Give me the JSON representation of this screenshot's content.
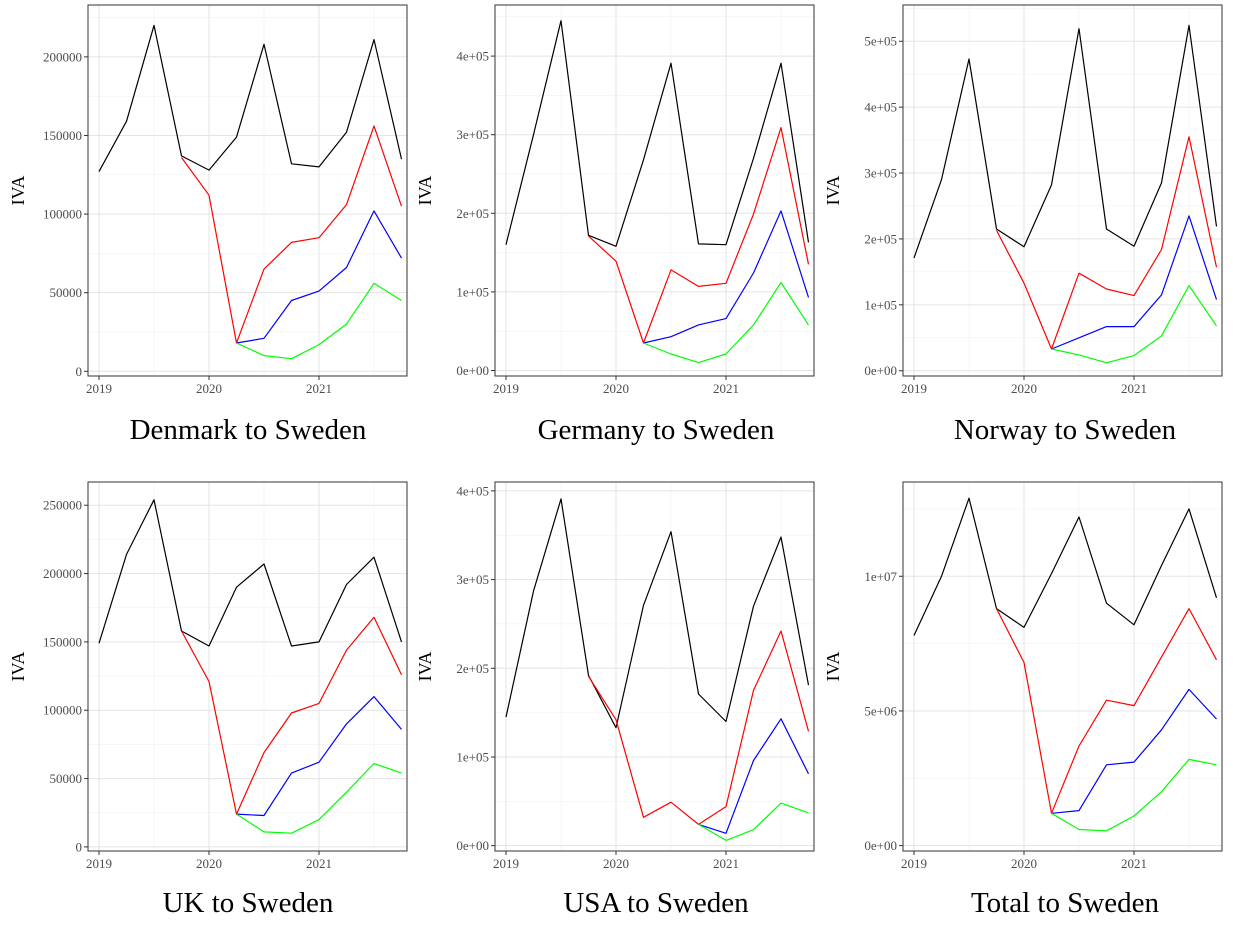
{
  "figure": {
    "series_colors": {
      "actual": "#000000",
      "red_scenario": "#ff0000",
      "blue_scenario": "#0000ff",
      "green_scenario": "#00ff00"
    }
  },
  "chart_data": [
    {
      "type": "line",
      "title": "Denmark to Sweden",
      "ylabel": "IVA",
      "xlabel": "",
      "x": [
        2019,
        2019.25,
        2019.5,
        2019.75,
        2020,
        2020.25,
        2020.5,
        2020.75,
        2021,
        2021.25,
        2021.5,
        2021.75
      ],
      "x_ticks": [
        2019,
        2020,
        2021
      ],
      "x_tick_labels": [
        "2019",
        "2020",
        "2021"
      ],
      "xlim": [
        2018.9,
        2021.8
      ],
      "ylim": [
        -3000,
        233000
      ],
      "y_ticks": [
        0,
        50000,
        100000,
        150000,
        200000
      ],
      "y_tick_labels": [
        "0",
        "50000",
        "100000",
        "150000",
        "200000"
      ],
      "grid": true,
      "series": [
        {
          "color": "#000000",
          "values": [
            127000,
            159000,
            220000,
            137000,
            128000,
            149000,
            208000,
            132000,
            130000,
            152000,
            211000,
            135000
          ]
        },
        {
          "color": "#ff0000",
          "values": [
            null,
            null,
            null,
            136000,
            112000,
            18000,
            65000,
            82000,
            85000,
            106000,
            156000,
            105000
          ]
        },
        {
          "color": "#0000ff",
          "values": [
            null,
            null,
            null,
            null,
            null,
            18000,
            21000,
            45000,
            51000,
            66000,
            102000,
            72000
          ]
        },
        {
          "color": "#00ff00",
          "values": [
            null,
            null,
            null,
            null,
            null,
            18000,
            10000,
            8000,
            17000,
            30000,
            56000,
            45000
          ]
        }
      ]
    },
    {
      "type": "line",
      "title": "Germany to Sweden",
      "ylabel": "IVA",
      "xlabel": "",
      "x": [
        2019,
        2019.25,
        2019.5,
        2019.75,
        2020,
        2020.25,
        2020.5,
        2020.75,
        2021,
        2021.25,
        2021.5,
        2021.75
      ],
      "x_ticks": [
        2019,
        2020,
        2021
      ],
      "x_tick_labels": [
        "2019",
        "2020",
        "2021"
      ],
      "xlim": [
        2018.9,
        2021.8
      ],
      "ylim": [
        -7000,
        465000
      ],
      "y_ticks": [
        0,
        100000,
        200000,
        300000,
        400000
      ],
      "y_tick_labels": [
        "0e+00",
        "1e+05",
        "2e+05",
        "3e+05",
        "4e+05"
      ],
      "grid": true,
      "series": [
        {
          "color": "#000000",
          "values": [
            160000,
            300000,
            445000,
            172000,
            158000,
            268000,
            391000,
            161000,
            160000,
            270000,
            391000,
            163000
          ]
        },
        {
          "color": "#ff0000",
          "values": [
            null,
            null,
            null,
            171000,
            139000,
            35000,
            128000,
            107000,
            111000,
            199000,
            309000,
            135000
          ]
        },
        {
          "color": "#0000ff",
          "values": [
            null,
            null,
            null,
            null,
            null,
            35000,
            43000,
            58000,
            66000,
            124000,
            203000,
            93000
          ]
        },
        {
          "color": "#00ff00",
          "values": [
            null,
            null,
            null,
            null,
            null,
            35000,
            21000,
            10000,
            21000,
            58000,
            112000,
            58000
          ]
        }
      ]
    },
    {
      "type": "line",
      "title": "Norway to Sweden",
      "ylabel": "IVA",
      "xlabel": "",
      "x": [
        2019,
        2019.25,
        2019.5,
        2019.75,
        2020,
        2020.25,
        2020.5,
        2020.75,
        2021,
        2021.25,
        2021.5,
        2021.75
      ],
      "x_ticks": [
        2019,
        2020,
        2021
      ],
      "x_tick_labels": [
        "2019",
        "2020",
        "2021"
      ],
      "xlim": [
        2018.9,
        2021.8
      ],
      "ylim": [
        -8000,
        555000
      ],
      "y_ticks": [
        0,
        100000,
        200000,
        300000,
        400000,
        500000
      ],
      "y_tick_labels": [
        "0e+00",
        "1e+05",
        "2e+05",
        "3e+05",
        "4e+05",
        "5e+05"
      ],
      "grid": true,
      "series": [
        {
          "color": "#000000",
          "values": [
            171000,
            290000,
            473000,
            215000,
            188000,
            282000,
            519000,
            215000,
            189000,
            285000,
            524000,
            219000
          ]
        },
        {
          "color": "#ff0000",
          "values": [
            null,
            null,
            null,
            213000,
            133000,
            33000,
            148000,
            124000,
            114000,
            184000,
            355000,
            157000
          ]
        },
        {
          "color": "#0000ff",
          "values": [
            null,
            null,
            null,
            null,
            null,
            33000,
            50000,
            67000,
            67000,
            115000,
            235000,
            108000
          ]
        },
        {
          "color": "#00ff00",
          "values": [
            null,
            null,
            null,
            null,
            null,
            33000,
            24000,
            12000,
            23000,
            53000,
            129000,
            68000
          ]
        }
      ]
    },
    {
      "type": "line",
      "title": "UK to Sweden",
      "ylabel": "IVA",
      "xlabel": "",
      "x": [
        2019,
        2019.25,
        2019.5,
        2019.75,
        2020,
        2020.25,
        2020.5,
        2020.75,
        2021,
        2021.25,
        2021.5,
        2021.75
      ],
      "x_ticks": [
        2019,
        2020,
        2021
      ],
      "x_tick_labels": [
        "2019",
        "2020",
        "2021"
      ],
      "xlim": [
        2018.9,
        2021.8
      ],
      "ylim": [
        -3000,
        267000
      ],
      "y_ticks": [
        0,
        50000,
        100000,
        150000,
        200000,
        250000
      ],
      "y_tick_labels": [
        "0",
        "50000",
        "100000",
        "150000",
        "200000",
        "250000"
      ],
      "grid": true,
      "series": [
        {
          "color": "#000000",
          "values": [
            149000,
            214000,
            254000,
            158000,
            147000,
            190000,
            207000,
            147000,
            150000,
            192000,
            212000,
            150000
          ]
        },
        {
          "color": "#ff0000",
          "values": [
            null,
            null,
            null,
            158000,
            121000,
            24000,
            69000,
            98000,
            105000,
            144000,
            168000,
            126000
          ]
        },
        {
          "color": "#0000ff",
          "values": [
            null,
            null,
            null,
            null,
            null,
            24000,
            23000,
            54000,
            62000,
            90000,
            110000,
            86000
          ]
        },
        {
          "color": "#00ff00",
          "values": [
            null,
            null,
            null,
            null,
            null,
            24000,
            11000,
            10000,
            20000,
            40000,
            61000,
            54000
          ]
        }
      ]
    },
    {
      "type": "line",
      "title": "USA to Sweden",
      "ylabel": "IVA",
      "xlabel": "",
      "x": [
        2019,
        2019.25,
        2019.5,
        2019.75,
        2020,
        2020.25,
        2020.5,
        2020.75,
        2021,
        2021.25,
        2021.5,
        2021.75
      ],
      "x_ticks": [
        2019,
        2020,
        2021
      ],
      "x_tick_labels": [
        "2019",
        "2020",
        "2021"
      ],
      "xlim": [
        2018.9,
        2021.8
      ],
      "ylim": [
        -6000,
        410000
      ],
      "y_ticks": [
        0,
        100000,
        200000,
        300000,
        400000
      ],
      "y_tick_labels": [
        "0e+00",
        "1e+05",
        "2e+05",
        "3e+05",
        "4e+05"
      ],
      "grid": true,
      "series": [
        {
          "color": "#000000",
          "values": [
            145000,
            287000,
            391000,
            192000,
            133000,
            271000,
            354000,
            171000,
            140000,
            270000,
            348000,
            181000
          ]
        },
        {
          "color": "#ff0000",
          "values": [
            null,
            null,
            null,
            191000,
            142000,
            32000,
            49000,
            24000,
            44000,
            175000,
            242000,
            129000
          ]
        },
        {
          "color": "#0000ff",
          "values": [
            null,
            null,
            null,
            null,
            null,
            null,
            null,
            24000,
            14000,
            96000,
            143000,
            81000
          ]
        },
        {
          "color": "#00ff00",
          "values": [
            null,
            null,
            null,
            null,
            null,
            null,
            null,
            24000,
            6000,
            18000,
            48000,
            37000
          ]
        }
      ]
    },
    {
      "type": "line",
      "title": "Total to Sweden",
      "ylabel": "IVA",
      "xlabel": "",
      "x": [
        2019,
        2019.25,
        2019.5,
        2019.75,
        2020,
        2020.25,
        2020.5,
        2020.75,
        2021,
        2021.25,
        2021.5,
        2021.75
      ],
      "x_ticks": [
        2019,
        2020,
        2021
      ],
      "x_tick_labels": [
        "2019",
        "2020",
        "2021"
      ],
      "xlim": [
        2018.9,
        2021.8
      ],
      "ylim": [
        -200000,
        13500000
      ],
      "y_ticks": [
        0,
        5000000,
        10000000
      ],
      "y_tick_labels": [
        "0e+00",
        "5e+06",
        "1e+07"
      ],
      "grid": true,
      "series": [
        {
          "color": "#000000",
          "values": [
            7800000,
            10000000,
            12900000,
            8800000,
            8100000,
            10100000,
            12200000,
            9000000,
            8200000,
            10400000,
            12500000,
            9200000
          ]
        },
        {
          "color": "#ff0000",
          "values": [
            null,
            null,
            null,
            8800000,
            6800000,
            1200000,
            3700000,
            5400000,
            5200000,
            7000000,
            8800000,
            6900000
          ]
        },
        {
          "color": "#0000ff",
          "values": [
            null,
            null,
            null,
            null,
            null,
            1200000,
            1300000,
            3000000,
            3100000,
            4300000,
            5800000,
            4700000
          ]
        },
        {
          "color": "#00ff00",
          "values": [
            null,
            null,
            null,
            null,
            null,
            1200000,
            600000,
            550000,
            1100000,
            2000000,
            3200000,
            3000000
          ]
        }
      ]
    }
  ]
}
